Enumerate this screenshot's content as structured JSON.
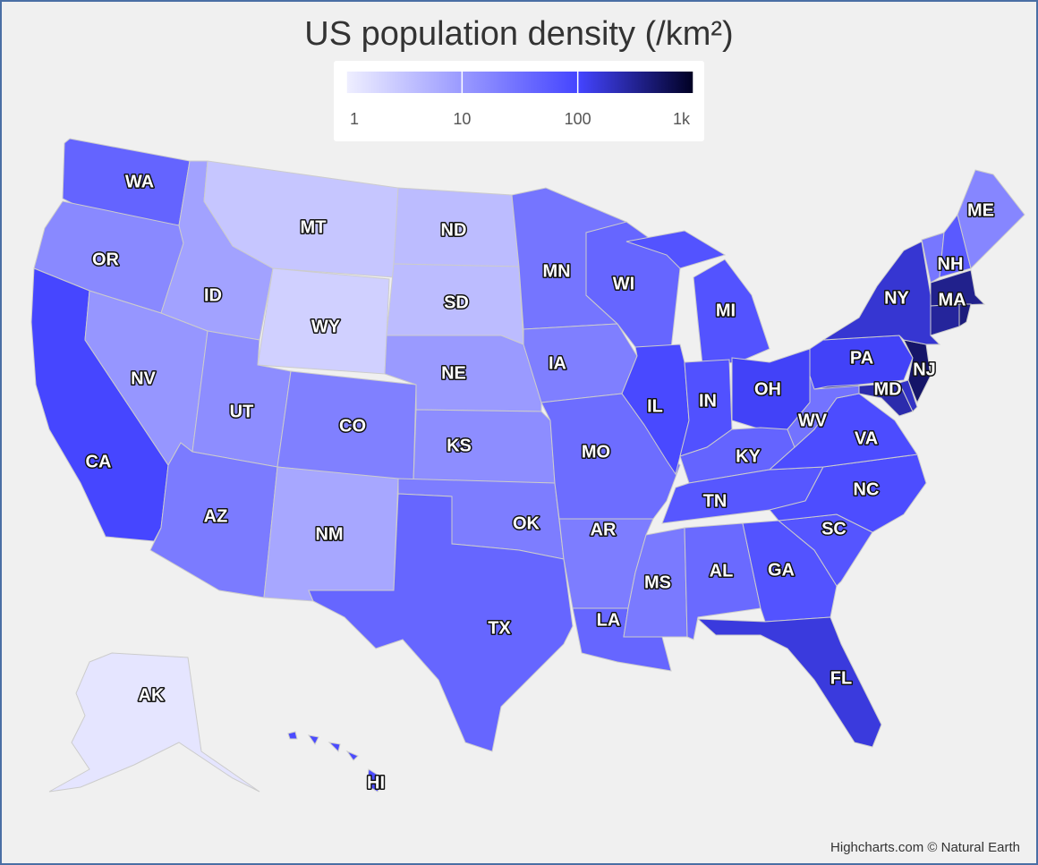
{
  "chart_data": {
    "type": "map",
    "title": "US population density (/km²)",
    "credits": "Highcharts.com © Natural Earth",
    "color_axis": {
      "range": [
        1,
        1000
      ],
      "log": true,
      "ticks": [
        1,
        10,
        100,
        {
          "value": 1000,
          "label": "1k"
        }
      ],
      "stops": [
        [
          0,
          "#efefff"
        ],
        [
          0.67,
          "#4444ff"
        ],
        [
          1,
          "#000022"
        ]
      ]
    },
    "border_color": "#cccccc",
    "categories": [
      "WA",
      "OR",
      "CA",
      "NV",
      "ID",
      "MT",
      "WY",
      "UT",
      "AZ",
      "CO",
      "NM",
      "ND",
      "SD",
      "NE",
      "KS",
      "OK",
      "TX",
      "MN",
      "IA",
      "MO",
      "AR",
      "LA",
      "WI",
      "IL",
      "MI",
      "IN",
      "OH",
      "KY",
      "TN",
      "MS",
      "AL",
      "GA",
      "FL",
      "SC",
      "NC",
      "VA",
      "WV",
      "PA",
      "MD",
      null,
      "NJ",
      "NY",
      null,
      "NH",
      "ME",
      "MA",
      null,
      null,
      "AK",
      "HI"
    ],
    "values": [
      43,
      16,
      97,
      11,
      8,
      3,
      2.3,
      14,
      23,
      20,
      7,
      4,
      4,
      10,
      14,
      22,
      41,
      27,
      21,
      34,
      22,
      41,
      41,
      89,
      68,
      72,
      110,
      43,
      62,
      24,
      37,
      68,
      145,
      65,
      80,
      82,
      29,
      110,
      240,
      186,
      488,
      162,
      26,
      57,
      17,
      336,
      286,
      394,
      1.3,
      85
    ]
  }
}
